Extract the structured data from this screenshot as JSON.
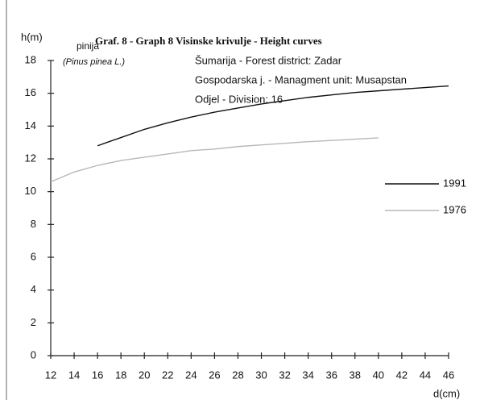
{
  "chart_data": {
    "type": "line",
    "title": "Graf. 8 - Graph 8  Visinske krivulje - Height curves",
    "subtitles": [
      "Šumarija - Forest district: Zadar",
      "Gospodarska j. - Managment unit: Musapstan",
      "Odjel - Division: 16"
    ],
    "species": "pinija",
    "species_latin": "(Pinus pinea L.)",
    "y_label": "h(m)",
    "x_label": "d(cm)",
    "x": [
      12,
      14,
      16,
      18,
      20,
      22,
      24,
      26,
      28,
      30,
      32,
      34,
      36,
      38,
      40,
      42,
      44,
      46
    ],
    "series": [
      {
        "name": "1991",
        "color": "#111111",
        "values": [
          null,
          null,
          12.8,
          13.3,
          13.8,
          14.2,
          14.55,
          14.85,
          15.1,
          15.35,
          15.55,
          15.75,
          15.9,
          16.05,
          16.15,
          16.25,
          16.35,
          16.45
        ]
      },
      {
        "name": "1976",
        "color": "#b8b8b8",
        "values": [
          10.6,
          11.2,
          11.6,
          11.9,
          12.1,
          12.3,
          12.5,
          12.6,
          12.75,
          12.85,
          12.95,
          13.05,
          13.12,
          13.2,
          13.28,
          null,
          null,
          null
        ]
      }
    ],
    "xlim": [
      12,
      46
    ],
    "xticks": [
      12,
      14,
      16,
      18,
      20,
      22,
      24,
      26,
      28,
      30,
      32,
      34,
      36,
      38,
      40,
      42,
      44,
      46
    ],
    "ylim": [
      0,
      18
    ],
    "yticks": [
      0,
      2,
      4,
      6,
      8,
      10,
      12,
      14,
      16,
      18
    ],
    "grid": false,
    "legend": "right"
  }
}
